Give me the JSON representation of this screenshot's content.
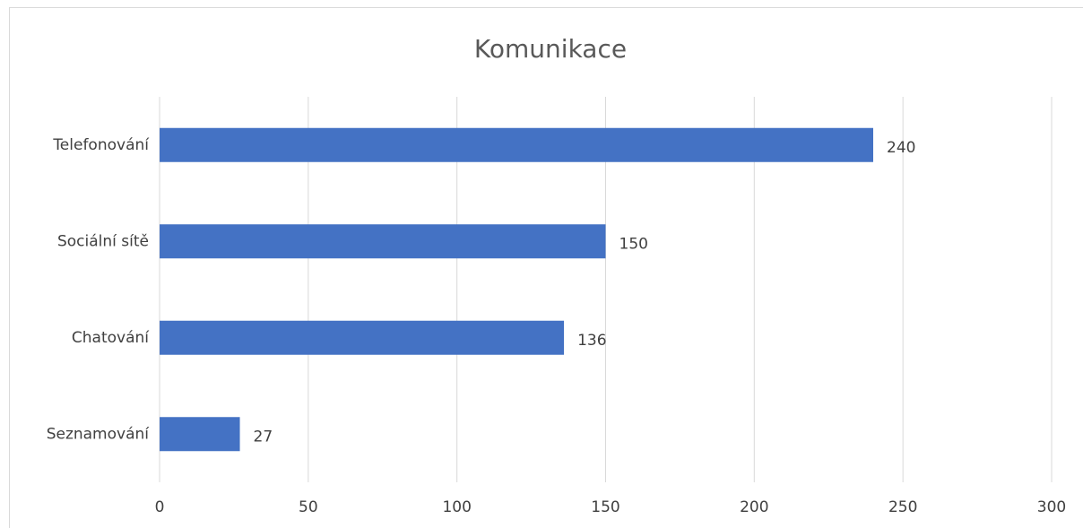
{
  "chart_data": {
    "type": "bar",
    "title": "Komunikace",
    "categories": [
      "Telefonování",
      "Sociální sítě",
      "Chatování",
      "Seznamování"
    ],
    "values": [
      240,
      150,
      136,
      27
    ],
    "color": "#4472c4",
    "xlim": [
      0,
      300
    ],
    "xticks": [
      0,
      50,
      100,
      150,
      200,
      250,
      300
    ],
    "grid": true
  }
}
